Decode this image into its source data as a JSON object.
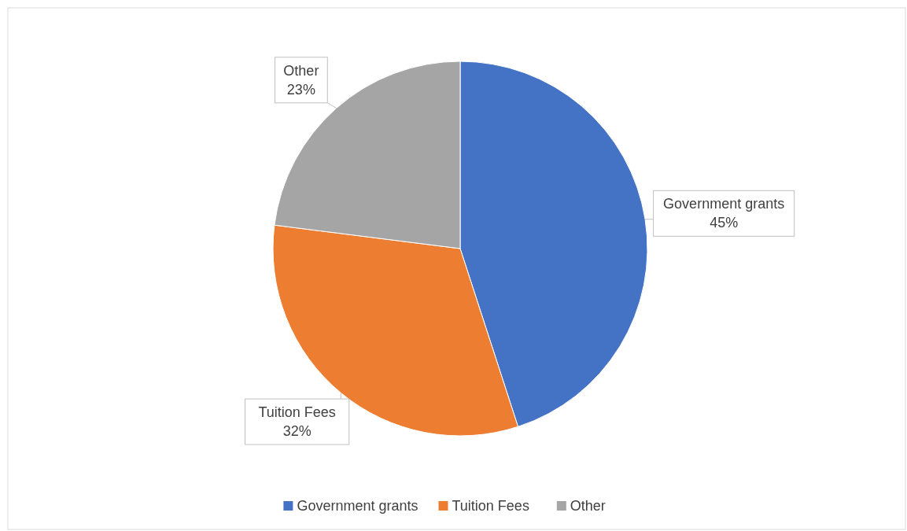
{
  "chart_data": {
    "type": "pie",
    "categories": [
      "Government grants",
      "Tuition Fees",
      "Other"
    ],
    "values": [
      45,
      32,
      23
    ],
    "colors": [
      "#4472c4",
      "#ed7d31",
      "#a5a5a5"
    ],
    "value_labels": [
      "45%",
      "32%",
      "23%"
    ],
    "legend": "bottom"
  }
}
